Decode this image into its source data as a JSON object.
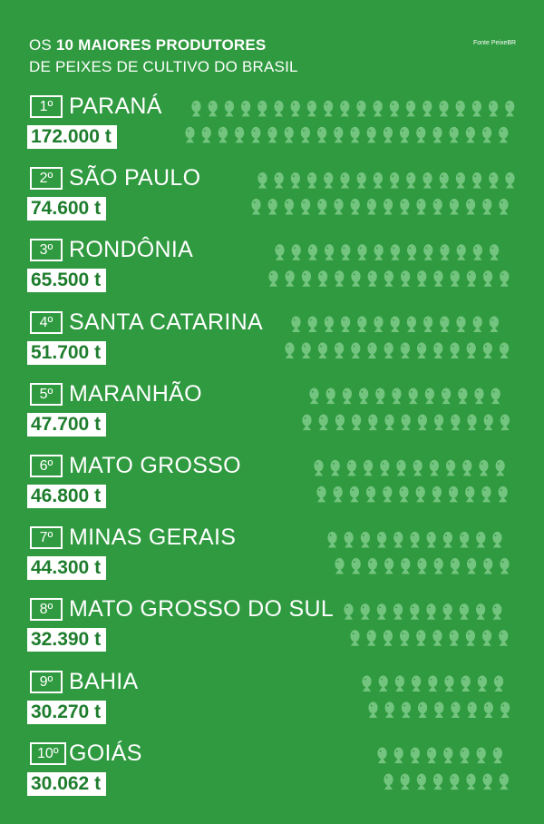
{
  "header": {
    "title_prefix": "OS",
    "title_bold": "10 MAIORES PRODUTORES",
    "subtitle": "DE PEIXES DE CULTIVO DO BRASIL",
    "source": "Fonte PeixeBR"
  },
  "items": [
    {
      "rank": "1º",
      "state": "PARANÁ",
      "amount": "172.000 t"
    },
    {
      "rank": "2º",
      "state": "SÃO PAULO",
      "amount": "74.600 t"
    },
    {
      "rank": "3º",
      "state": "RONDÔNIA",
      "amount": "65.500 t"
    },
    {
      "rank": "4º",
      "state": "SANTA CATARINA",
      "amount": "51.700 t"
    },
    {
      "rank": "5º",
      "state": "MARANHÃO",
      "amount": "47.700 t"
    },
    {
      "rank": "6º",
      "state": "MATO GROSSO",
      "amount": "46.800 t"
    },
    {
      "rank": "7º",
      "state": "MINAS GERAIS",
      "amount": "44.300 t"
    },
    {
      "rank": "8º",
      "state": "MATO GROSSO DO SUL",
      "amount": "32.390 t"
    },
    {
      "rank": "9º",
      "state": "BAHIA",
      "amount": "30.270 t"
    },
    {
      "rank": "10º",
      "state": "GOIÁS",
      "amount": "30.062 t"
    }
  ]
}
